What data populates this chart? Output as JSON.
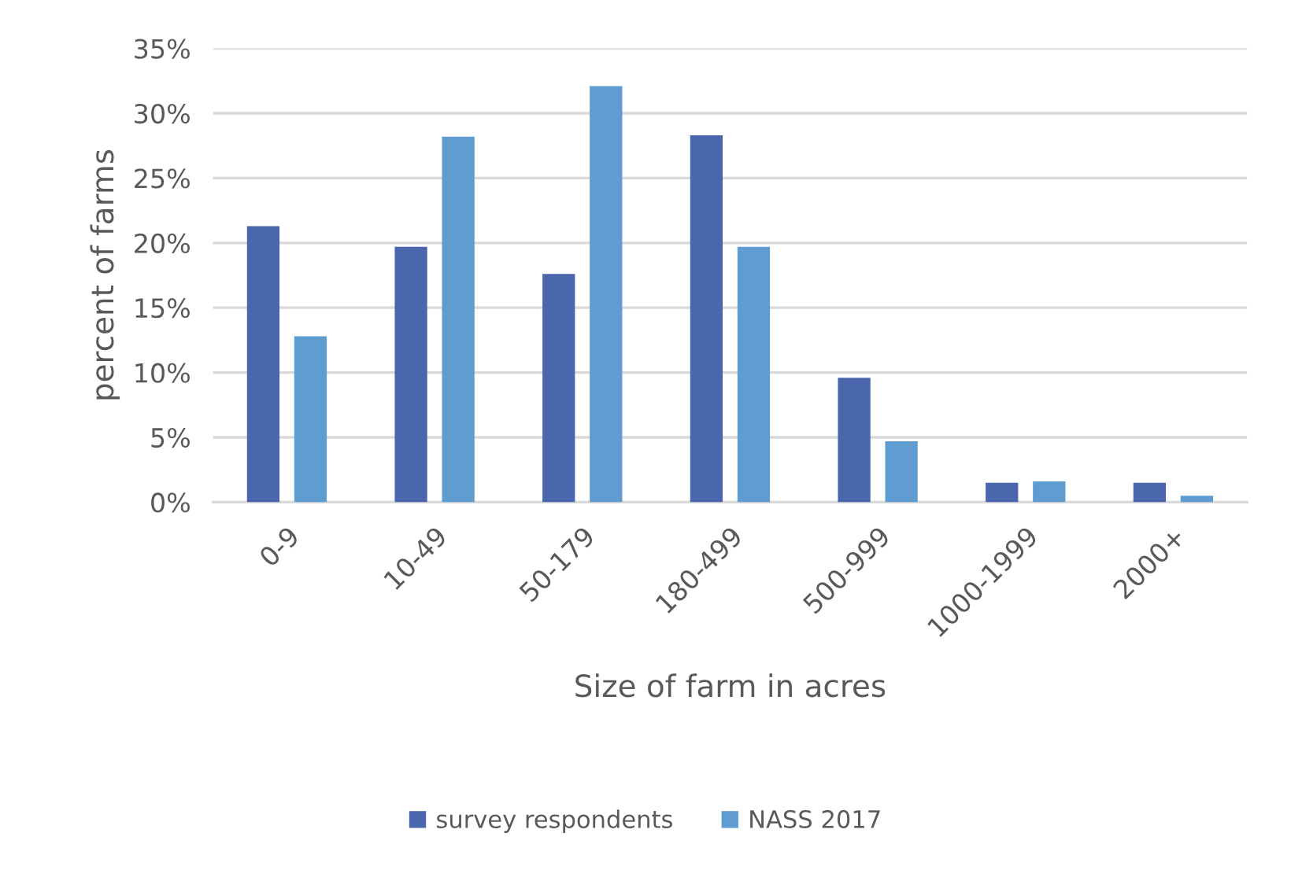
{
  "chart_data": {
    "type": "bar",
    "xlabel": "Size of farm in acres",
    "ylabel": "percent of farms",
    "categories": [
      "0-9",
      "10-49",
      "50-179",
      "180-499",
      "500-999",
      "1000-1999",
      "2000+"
    ],
    "series": [
      {
        "name": "survey respondents",
        "color": "#4a67ad",
        "values": [
          21.3,
          19.7,
          17.6,
          28.3,
          9.6,
          1.5,
          1.5
        ]
      },
      {
        "name": "NASS 2017",
        "color": "#5f9dd1",
        "values": [
          12.8,
          28.2,
          32.1,
          19.7,
          4.7,
          1.6,
          0.5
        ]
      }
    ],
    "ylim": [
      0,
      35
    ],
    "yticks": [
      {
        "value": 0,
        "label": "0%"
      },
      {
        "value": 5,
        "label": "5%"
      },
      {
        "value": 10,
        "label": "10%"
      },
      {
        "value": 15,
        "label": "15%"
      },
      {
        "value": 20,
        "label": "20%"
      },
      {
        "value": 25,
        "label": "25%"
      },
      {
        "value": 30,
        "label": "30%"
      },
      {
        "value": 35,
        "label": "35%"
      }
    ],
    "grid": "y",
    "legend": "bottom"
  }
}
